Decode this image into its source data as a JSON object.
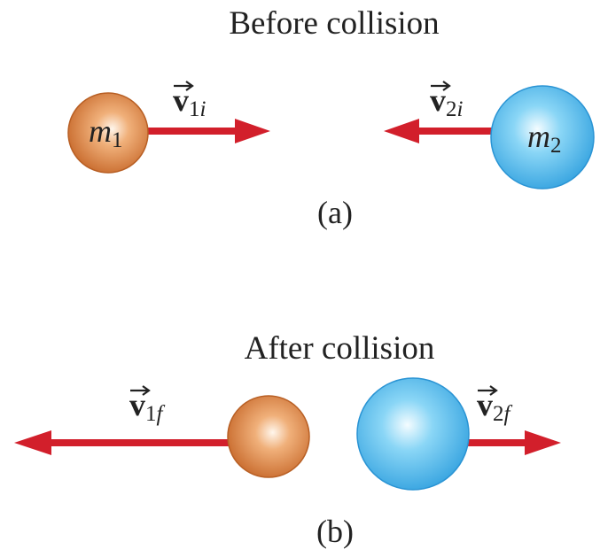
{
  "before": {
    "title": "Before collision",
    "mass_1": {
      "symbol": "m",
      "index": "1"
    },
    "mass_2": {
      "symbol": "m",
      "index": "2"
    },
    "velocity_1": {
      "symbol": "v",
      "index": "1",
      "qualifier": "i"
    },
    "velocity_2": {
      "symbol": "v",
      "index": "2",
      "qualifier": "i"
    },
    "caption": "(a)"
  },
  "after": {
    "title": "After collision",
    "velocity_1": {
      "symbol": "v",
      "index": "1",
      "qualifier": "f"
    },
    "velocity_2": {
      "symbol": "v",
      "index": "2",
      "qualifier": "f"
    },
    "caption": "(b)"
  }
}
